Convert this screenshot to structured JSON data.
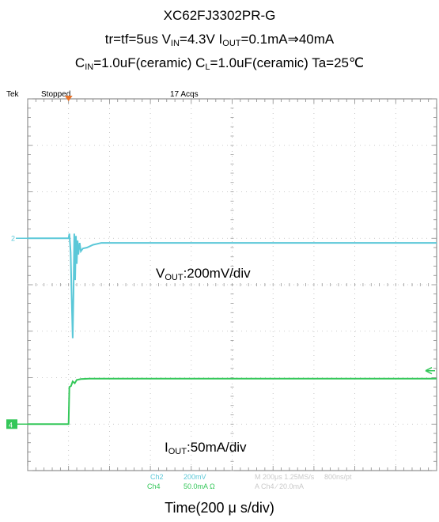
{
  "chart_data": {
    "type": "line",
    "title": "XC62FJ3302PR-G",
    "conditions": {
      "line1": {
        "a": "tr=tf=5us V",
        "a_sub": "IN",
        "b": "=4.3V I",
        "b_sub": "OUT",
        "c": "=0.1mA⇒40mA"
      },
      "line2": {
        "a": "C",
        "a_sub": "IN",
        "b": "=1.0uF(ceramic) C",
        "b_sub": "L",
        "c": "=1.0uF(ceramic) Ta=25℃"
      }
    },
    "scope_header": {
      "brand": "Tek",
      "state": "Stopped",
      "acqs": "17 Acqs"
    },
    "xlabel": "Time(200 μ s/div)",
    "x_divisions": 10,
    "y_divisions": 8,
    "series": [
      {
        "name": "Ch2",
        "color": "#5bc8d8",
        "marker": "2",
        "annotation": {
          "a": "V",
          "a_sub": "OUT",
          "b": ":200mV/div"
        },
        "points": [
          [
            0,
            0
          ],
          [
            1.0,
            0
          ],
          [
            1.02,
            0.1
          ],
          [
            1.05,
            -0.3
          ],
          [
            1.08,
            -1.4
          ],
          [
            1.1,
            -2.15
          ],
          [
            1.12,
            -1.2
          ],
          [
            1.14,
            0.1
          ],
          [
            1.16,
            -0.9
          ],
          [
            1.18,
            0.05
          ],
          [
            1.2,
            -0.55
          ],
          [
            1.22,
            -0.05
          ],
          [
            1.24,
            -0.35
          ],
          [
            1.27,
            -0.1
          ],
          [
            1.3,
            -0.28
          ],
          [
            1.35,
            -0.22
          ],
          [
            1.45,
            -0.2
          ],
          [
            1.6,
            -0.14
          ],
          [
            1.8,
            -0.1
          ],
          [
            2.2,
            -0.1
          ],
          [
            10,
            -0.1
          ]
        ]
      },
      {
        "name": "Ch4",
        "color": "#34c759",
        "marker": "4",
        "annotation": {
          "a": "I",
          "a_sub": "OUT",
          "b": ":50mA/div"
        },
        "points": [
          [
            0,
            0
          ],
          [
            1.0,
            0
          ],
          [
            1.02,
            0.8
          ],
          [
            1.06,
            0.82
          ],
          [
            1.1,
            0.92
          ],
          [
            1.15,
            0.88
          ],
          [
            1.2,
            0.95
          ],
          [
            1.3,
            0.97
          ],
          [
            1.5,
            0.98
          ],
          [
            10,
            0.98
          ]
        ]
      }
    ],
    "readout": {
      "ch2_label": "Ch2",
      "ch2_scale": "200mV",
      "ch4_label": "Ch4",
      "ch4_scale": "50.0mA Ω",
      "timebase": "M 200μs 1.25MS/s",
      "record": "800ns/pt",
      "trigger": "A Ch4 ∕ 20.0mA"
    }
  }
}
